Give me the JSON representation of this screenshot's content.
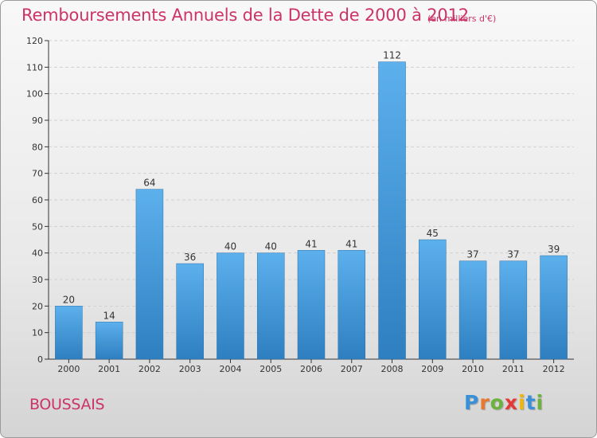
{
  "title": "Remboursements Annuels de la Dette de 2000 à 2012",
  "subtitle": "(en milliers d'€)",
  "commune": "BOUSSAIS",
  "logo": {
    "letters": [
      "P",
      "r",
      "o",
      "x",
      "i",
      "t",
      "i"
    ],
    "colors": [
      "#3a8fd9",
      "#e8782a",
      "#6cb33e",
      "#e53935",
      "#f2b705",
      "#3a8fd9",
      "#6cb33e"
    ]
  },
  "colors": {
    "bar_top": "#5cb0ec",
    "bar_bottom": "#2e7fc0",
    "text": "#cc3366",
    "axis": "#333333"
  },
  "chart_data": {
    "type": "bar",
    "title": "Remboursements Annuels de la Dette de 2000 à 2012",
    "categories": [
      "2000",
      "2001",
      "2002",
      "2003",
      "2004",
      "2005",
      "2006",
      "2007",
      "2008",
      "2009",
      "2010",
      "2011",
      "2012"
    ],
    "values": [
      20,
      14,
      64,
      36,
      40,
      40,
      41,
      41,
      112,
      45,
      37,
      37,
      39
    ],
    "ylim": [
      0,
      120
    ],
    "yticks": [
      0,
      10,
      20,
      30,
      40,
      50,
      60,
      70,
      80,
      90,
      100,
      110,
      120
    ],
    "grid": true
  }
}
